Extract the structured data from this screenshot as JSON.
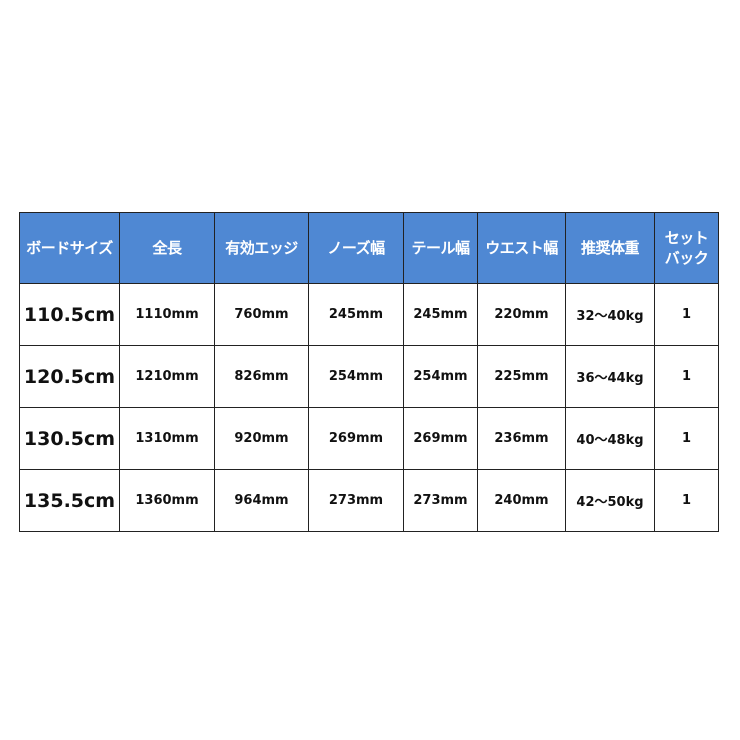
{
  "table": {
    "headers": [
      "ボードサイズ",
      "全長",
      "有効エッジ",
      "ノーズ幅",
      "テール幅",
      "ウエスト幅",
      "推奨体重",
      "セット\nバック"
    ],
    "header_color": "#4f88d3",
    "rows": [
      [
        "110.5cm",
        "1110mm",
        "760mm",
        "245mm",
        "245mm",
        "220mm",
        "32〜40kg",
        "1"
      ],
      [
        "120.5cm",
        "1210mm",
        "826mm",
        "254mm",
        "254mm",
        "225mm",
        "36〜44kg",
        "1"
      ],
      [
        "130.5cm",
        "1310mm",
        "920mm",
        "269mm",
        "269mm",
        "236mm",
        "40〜48kg",
        "1"
      ],
      [
        "135.5cm",
        "1360mm",
        "964mm",
        "273mm",
        "273mm",
        "240mm",
        "42〜50kg",
        "1"
      ]
    ]
  }
}
